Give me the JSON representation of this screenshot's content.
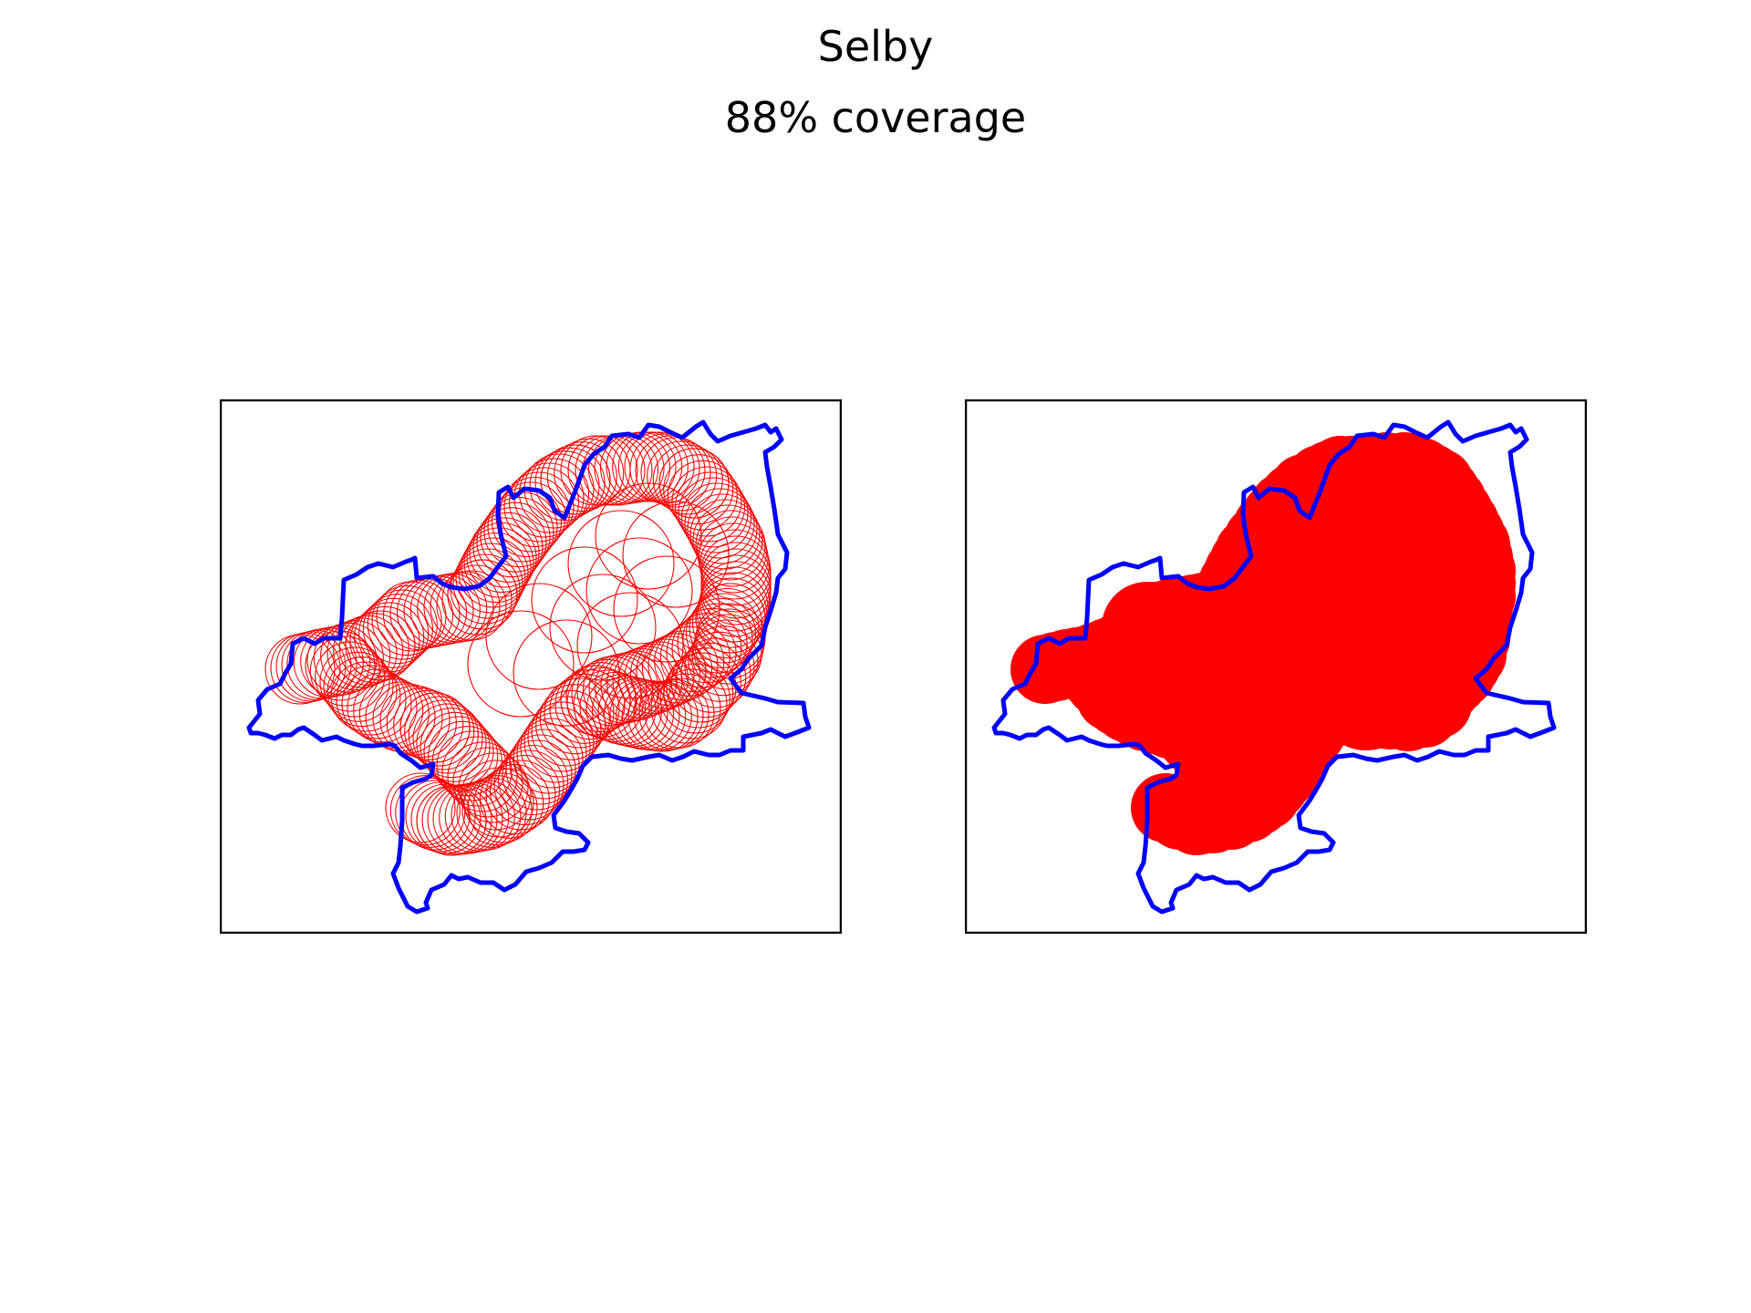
{
  "figure": {
    "title": "Selby",
    "subtitle": "88% coverage"
  },
  "colors": {
    "boundary": "#0000ff",
    "coverage": "#ff0000",
    "frame": "#000000",
    "background": "#ffffff"
  },
  "panels": [
    {
      "style": "outline-circles"
    },
    {
      "style": "filled-union"
    }
  ]
}
